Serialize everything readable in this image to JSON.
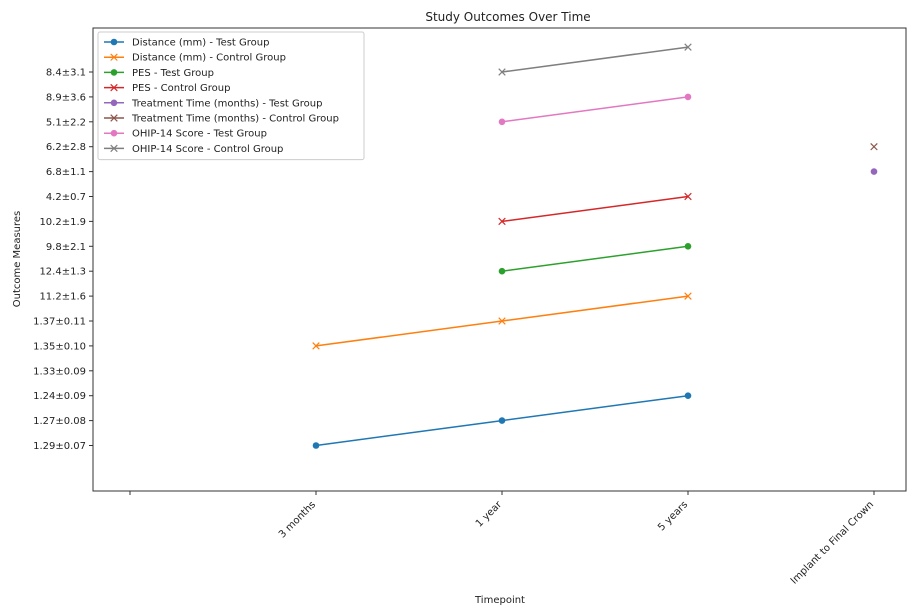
{
  "chart_data": {
    "type": "line",
    "title": "Study Outcomes Over Time",
    "xlabel": "Timepoint",
    "ylabel": "Outcome Measures",
    "categories": [
      "",
      "3 months",
      "1 year",
      "5 years",
      "Implant to Final Crown"
    ],
    "y_categories": [
      "1.29±0.07",
      "1.27±0.08",
      "1.24±0.09",
      "1.33±0.09",
      "1.35±0.10",
      "1.37±0.11",
      "11.2±1.6",
      "12.4±1.3",
      "9.8±2.1",
      "10.2±1.9",
      "4.2±0.7",
      "6.8±1.1",
      "6.2±2.8",
      "5.1±2.2",
      "8.9±3.6",
      "8.4±3.1"
    ],
    "grid": false,
    "legend_position": "top-left",
    "series": [
      {
        "name": "Distance (mm) - Test Group",
        "color": "#1f77b4",
        "marker": "circle",
        "points": [
          [
            "3 months",
            "1.29±0.07"
          ],
          [
            "1 year",
            "1.27±0.08"
          ],
          [
            "5 years",
            "1.24±0.09"
          ]
        ]
      },
      {
        "name": "Distance (mm) - Control Group",
        "color": "#ff7f0e",
        "marker": "x",
        "points": [
          [
            "3 months",
            "1.35±0.10"
          ],
          [
            "1 year",
            "1.37±0.11"
          ],
          [
            "5 years",
            "11.2±1.6"
          ]
        ]
      },
      {
        "name": "PES - Test Group",
        "color": "#2ca02c",
        "marker": "circle",
        "points": [
          [
            "1 year",
            "12.4±1.3"
          ],
          [
            "5 years",
            "9.8±2.1"
          ]
        ]
      },
      {
        "name": "PES - Control Group",
        "color": "#d62728",
        "marker": "x",
        "points": [
          [
            "1 year",
            "10.2±1.9"
          ],
          [
            "5 years",
            "4.2±0.7"
          ]
        ]
      },
      {
        "name": "Treatment Time (months) - Test Group",
        "color": "#9467bd",
        "marker": "circle",
        "points": [
          [
            "Implant to Final Crown",
            "6.8±1.1"
          ]
        ]
      },
      {
        "name": "Treatment Time (months) - Control Group",
        "color": "#8c564b",
        "marker": "x",
        "points": [
          [
            "Implant to Final Crown",
            "6.2±2.8"
          ]
        ]
      },
      {
        "name": "OHIP-14 Score - Test Group",
        "color": "#e377c2",
        "marker": "circle",
        "points": [
          [
            "1 year",
            "5.1±2.2"
          ],
          [
            "5 years",
            "8.9±3.6"
          ]
        ]
      },
      {
        "name": "OHIP-14 Score - Control Group",
        "color": "#7f7f7f",
        "marker": "x",
        "points": [
          [
            "1 year",
            "8.4±3.1"
          ],
          [
            "5 years",
            ""
          ]
        ]
      }
    ]
  }
}
